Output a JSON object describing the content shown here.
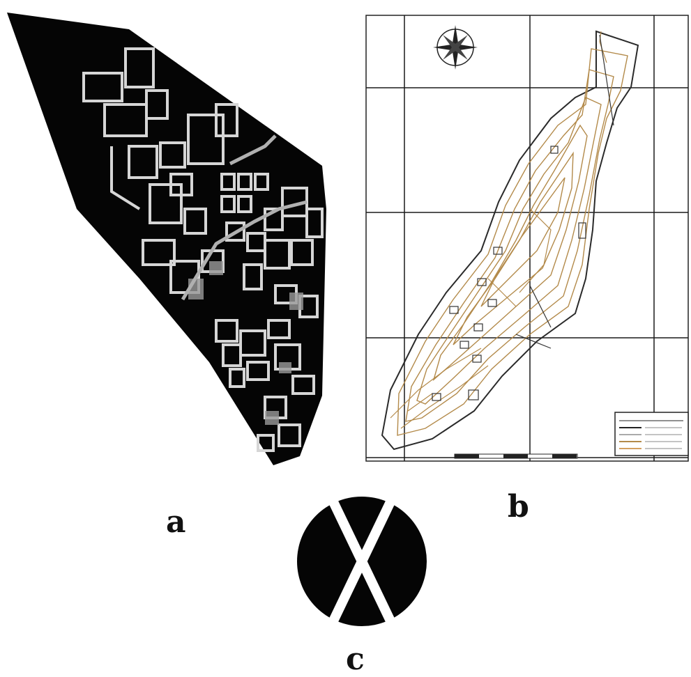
{
  "panels": {
    "a": {
      "label": "a"
    },
    "b": {
      "label": "b"
    },
    "c": {
      "label": "c"
    }
  },
  "colors": {
    "background": "#ffffff",
    "site_fill": "#050505",
    "wall_lines": "#d8d8d8",
    "contours": "#b38a4a",
    "grid": "#1a1a1a"
  },
  "icons": [
    "compass-rose-icon",
    "scale-bar",
    "legend-box"
  ]
}
